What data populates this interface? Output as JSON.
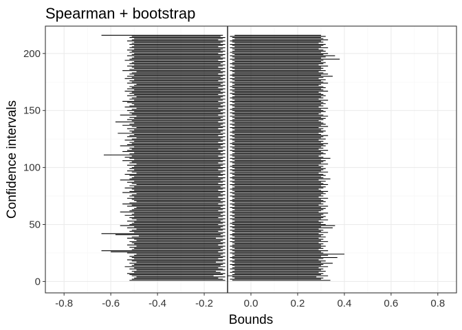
{
  "chart_data": {
    "type": "interval",
    "title": "Spearman + bootstrap",
    "xlabel": "Bounds",
    "ylabel": "Confidence intervals",
    "xlim": [
      -0.88,
      0.88
    ],
    "ylim": [
      -10,
      224
    ],
    "x_ticks": [
      -0.8,
      -0.6,
      -0.4,
      -0.2,
      0.0,
      0.2,
      0.4,
      0.6,
      0.8
    ],
    "x_tick_labels": [
      "-0.8",
      "-0.6",
      "-0.4",
      "-0.2",
      "0.0",
      "0.2",
      "0.4",
      "0.6",
      "0.8"
    ],
    "y_ticks": [
      0,
      50,
      100,
      150,
      200
    ],
    "y_tick_labels": [
      "0",
      "50",
      "100",
      "150",
      "200"
    ],
    "reference_line_x": -0.1,
    "grid": true,
    "interval_count": 216,
    "intervals": {
      "lower": [
        -0.52,
        -0.51,
        -0.5,
        -0.49,
        -0.51,
        -0.52,
        -0.53,
        -0.5,
        -0.51,
        -0.49,
        -0.52,
        -0.5,
        -0.54,
        -0.51,
        -0.5,
        -0.52,
        -0.49,
        -0.51,
        -0.53,
        -0.5,
        -0.51,
        -0.52,
        -0.5,
        -0.49,
        -0.53,
        -0.6,
        -0.64,
        -0.51,
        -0.5,
        -0.52,
        -0.49,
        -0.53,
        -0.5,
        -0.51,
        -0.52,
        -0.49,
        -0.5,
        -0.53,
        -0.51,
        -0.48,
        -0.58,
        -0.64,
        -0.5,
        -0.52,
        -0.51,
        -0.49,
        -0.53,
        -0.5,
        -0.56,
        -0.52,
        -0.51,
        -0.5,
        -0.53,
        -0.49,
        -0.51,
        -0.52,
        -0.5,
        -0.54,
        -0.51,
        -0.5,
        -0.56,
        -0.52,
        -0.51,
        -0.5,
        -0.49,
        -0.53,
        -0.51,
        -0.55,
        -0.52,
        -0.49,
        -0.5,
        -0.51,
        -0.53,
        -0.5,
        -0.52,
        -0.51,
        -0.49,
        -0.55,
        -0.52,
        -0.5,
        -0.51,
        -0.54,
        -0.5,
        -0.52,
        -0.49,
        -0.51,
        -0.53,
        -0.5,
        -0.56,
        -0.52,
        -0.51,
        -0.5,
        -0.52,
        -0.54,
        -0.49,
        -0.51,
        -0.53,
        -0.5,
        -0.52,
        -0.51,
        -0.5,
        -0.53,
        -0.49,
        -0.52,
        -0.51,
        -0.55,
        -0.5,
        -0.52,
        -0.54,
        -0.51,
        -0.63,
        -0.52,
        -0.5,
        -0.55,
        -0.53,
        -0.51,
        -0.52,
        -0.5,
        -0.56,
        -0.53,
        -0.51,
        -0.52,
        -0.5,
        -0.54,
        -0.51,
        -0.49,
        -0.53,
        -0.52,
        -0.5,
        -0.57,
        -0.51,
        -0.52,
        -0.5,
        -0.53,
        -0.49,
        -0.51,
        -0.55,
        -0.52,
        -0.5,
        -0.58,
        -0.51,
        -0.53,
        -0.5,
        -0.52,
        -0.49,
        -0.56,
        -0.51,
        -0.52,
        -0.5,
        -0.53,
        -0.51,
        -0.49,
        -0.54,
        -0.52,
        -0.5,
        -0.51,
        -0.53,
        -0.55,
        -0.5,
        -0.52,
        -0.51,
        -0.49,
        -0.53,
        -0.5,
        -0.52,
        -0.51,
        -0.54,
        -0.5,
        -0.53,
        -0.51,
        -0.52,
        -0.5,
        -0.49,
        -0.53,
        -0.51,
        -0.52,
        -0.5,
        -0.54,
        -0.51,
        -0.53,
        -0.5,
        -0.52,
        -0.51,
        -0.49,
        -0.55,
        -0.52,
        -0.5,
        -0.51,
        -0.53,
        -0.5,
        -0.52,
        -0.51,
        -0.5,
        -0.54,
        -0.52,
        -0.51,
        -0.5,
        -0.53,
        -0.51,
        -0.5,
        -0.52,
        -0.51,
        -0.53,
        -0.5,
        -0.52,
        -0.51,
        -0.5,
        -0.52,
        -0.51,
        -0.5,
        -0.53,
        -0.51,
        -0.5,
        -0.52,
        -0.51,
        -0.64
      ],
      "upper": [
        -0.11,
        -0.12,
        -0.14,
        -0.11,
        -0.16,
        -0.12,
        -0.11,
        -0.13,
        -0.15,
        -0.11,
        -0.12,
        -0.14,
        -0.11,
        -0.13,
        -0.12,
        -0.11,
        -0.15,
        -0.12,
        -0.11,
        -0.14,
        -0.12,
        -0.11,
        -0.13,
        -0.12,
        -0.11,
        -0.14,
        -0.12,
        -0.11,
        -0.13,
        -0.12,
        -0.11,
        -0.14,
        -0.12,
        -0.11,
        -0.13,
        -0.12,
        -0.11,
        -0.15,
        -0.12,
        -0.11,
        -0.13,
        -0.12,
        -0.11,
        -0.14,
        -0.12,
        -0.11,
        -0.13,
        -0.12,
        -0.11,
        -0.14,
        -0.12,
        -0.11,
        -0.13,
        -0.12,
        -0.11,
        -0.14,
        -0.12,
        -0.11,
        -0.13,
        -0.12,
        -0.11,
        -0.14,
        -0.12,
        -0.11,
        -0.13,
        -0.12,
        -0.11,
        -0.14,
        -0.12,
        -0.11,
        -0.13,
        -0.12,
        -0.11,
        -0.14,
        -0.12,
        -0.11,
        -0.13,
        -0.12,
        -0.11,
        -0.14,
        -0.12,
        -0.11,
        -0.13,
        -0.12,
        -0.11,
        -0.14,
        -0.12,
        -0.11,
        -0.13,
        -0.12,
        -0.11,
        -0.14,
        -0.12,
        -0.11,
        -0.13,
        -0.12,
        -0.11,
        -0.14,
        -0.12,
        -0.11,
        -0.13,
        -0.12,
        -0.11,
        -0.14,
        -0.12,
        -0.11,
        -0.13,
        -0.12,
        -0.11,
        -0.14,
        -0.12,
        -0.11,
        -0.13,
        -0.12,
        -0.11,
        -0.14,
        -0.12,
        -0.11,
        -0.13,
        -0.12,
        -0.11,
        -0.14,
        -0.12,
        -0.11,
        -0.13,
        -0.12,
        -0.11,
        -0.14,
        -0.12,
        -0.11,
        -0.13,
        -0.12,
        -0.11,
        -0.14,
        -0.12,
        -0.11,
        -0.13,
        -0.12,
        -0.11,
        -0.14,
        -0.12,
        -0.11,
        -0.13,
        -0.12,
        -0.11,
        -0.14,
        -0.12,
        -0.11,
        -0.13,
        -0.12,
        -0.11,
        -0.14,
        -0.12,
        -0.11,
        -0.13,
        -0.12,
        -0.11,
        -0.14,
        -0.12,
        -0.11,
        -0.13,
        -0.12,
        -0.11,
        -0.14,
        -0.12,
        -0.11,
        -0.13,
        -0.12,
        -0.11,
        -0.14,
        -0.12,
        -0.11,
        -0.13,
        -0.12,
        -0.11,
        -0.14,
        -0.12,
        -0.11,
        -0.13,
        -0.12,
        -0.11,
        -0.14,
        -0.12,
        -0.11,
        -0.13,
        -0.12,
        -0.11,
        -0.14,
        -0.12,
        -0.11,
        -0.13,
        -0.12,
        -0.11,
        -0.14,
        -0.12,
        -0.11,
        -0.13,
        -0.12,
        -0.11,
        -0.14,
        -0.12,
        -0.11,
        -0.13,
        -0.12,
        -0.11,
        -0.14,
        -0.12,
        -0.11,
        -0.13,
        -0.12,
        -0.11,
        -0.14,
        -0.12,
        -0.11,
        -0.13,
        -0.12
      ],
      "right_lower": [
        -0.08,
        -0.09,
        -0.07,
        -0.08,
        -0.1,
        -0.08,
        -0.07,
        -0.09,
        -0.08,
        -0.07,
        -0.09,
        -0.08,
        -0.07,
        -0.08,
        -0.09,
        -0.07,
        -0.08,
        -0.09,
        -0.07,
        -0.08,
        -0.09,
        -0.08,
        -0.07,
        -0.08,
        -0.09,
        -0.07,
        -0.08,
        -0.09,
        -0.07,
        -0.08,
        -0.09,
        -0.08,
        -0.07,
        -0.08,
        -0.09,
        -0.07,
        -0.08,
        -0.09,
        -0.07,
        -0.08,
        -0.09,
        -0.08,
        -0.07,
        -0.08,
        -0.09,
        -0.07,
        -0.08,
        -0.09,
        -0.07,
        -0.08,
        -0.09,
        -0.08,
        -0.07,
        -0.08,
        -0.09,
        -0.07,
        -0.08,
        -0.09,
        -0.07,
        -0.08,
        -0.09,
        -0.08,
        -0.07,
        -0.08,
        -0.09,
        -0.07,
        -0.08,
        -0.09,
        -0.07,
        -0.08,
        -0.09,
        -0.08,
        -0.07,
        -0.08,
        -0.09,
        -0.07,
        -0.08,
        -0.09,
        -0.07,
        -0.08,
        -0.09,
        -0.08,
        -0.07,
        -0.08,
        -0.09,
        -0.07,
        -0.08,
        -0.09,
        -0.07,
        -0.08,
        -0.09,
        -0.08,
        -0.07,
        -0.08,
        -0.09,
        -0.07,
        -0.08,
        -0.09,
        -0.07,
        -0.08,
        -0.09,
        -0.08,
        -0.07,
        -0.08,
        -0.09,
        -0.07,
        -0.08,
        -0.09,
        -0.07,
        -0.08,
        -0.09,
        -0.08,
        -0.07,
        -0.08,
        -0.09,
        -0.07,
        -0.08,
        -0.09,
        -0.07,
        -0.08,
        -0.09,
        -0.08,
        -0.07,
        -0.08,
        -0.09,
        -0.07,
        -0.08,
        -0.09,
        -0.07,
        -0.08,
        -0.09,
        -0.08,
        -0.07,
        -0.08,
        -0.09,
        -0.07,
        -0.08,
        -0.09,
        -0.07,
        -0.08,
        -0.09,
        -0.08,
        -0.07,
        -0.08,
        -0.09,
        -0.07,
        -0.08,
        -0.09,
        -0.07,
        -0.08,
        -0.09,
        -0.08,
        -0.07,
        -0.08,
        -0.09,
        -0.07,
        -0.08,
        -0.09,
        -0.07,
        -0.08,
        -0.09,
        -0.08,
        -0.07,
        -0.08,
        -0.09,
        -0.07,
        -0.08,
        -0.09,
        -0.07,
        -0.08,
        -0.09,
        -0.08,
        -0.07,
        -0.08,
        -0.09,
        -0.07,
        -0.08,
        -0.09,
        -0.07,
        -0.08,
        -0.09,
        -0.08,
        -0.07,
        -0.08,
        -0.09,
        -0.07,
        -0.08,
        -0.09,
        -0.07,
        -0.08,
        -0.09,
        -0.08,
        -0.07,
        -0.08,
        -0.09,
        -0.07,
        -0.08,
        -0.09,
        -0.07,
        -0.08,
        -0.09,
        -0.08,
        -0.07,
        -0.08,
        -0.09,
        -0.07,
        -0.08,
        -0.09,
        -0.07,
        -0.08,
        -0.09,
        -0.08,
        -0.07,
        -0.08,
        -0.09,
        -0.07
      ],
      "right_upper": [
        0.34,
        0.3,
        0.31,
        0.28,
        0.33,
        0.3,
        0.31,
        0.29,
        0.32,
        0.3,
        0.31,
        0.29,
        0.33,
        0.3,
        0.31,
        0.35,
        0.3,
        0.32,
        0.29,
        0.31,
        0.37,
        0.3,
        0.33,
        0.4,
        0.31,
        0.3,
        0.33,
        0.29,
        0.31,
        0.3,
        0.32,
        0.3,
        0.31,
        0.29,
        0.33,
        0.3,
        0.31,
        0.29,
        0.32,
        0.3,
        0.31,
        0.29,
        0.33,
        0.3,
        0.31,
        0.29,
        0.35,
        0.3,
        0.36,
        0.32,
        0.3,
        0.31,
        0.29,
        0.33,
        0.3,
        0.31,
        0.32,
        0.3,
        0.31,
        0.33,
        0.29,
        0.3,
        0.31,
        0.32,
        0.3,
        0.33,
        0.29,
        0.31,
        0.3,
        0.32,
        0.31,
        0.3,
        0.33,
        0.29,
        0.31,
        0.3,
        0.32,
        0.31,
        0.33,
        0.3,
        0.29,
        0.31,
        0.32,
        0.3,
        0.33,
        0.31,
        0.3,
        0.32,
        0.29,
        0.34,
        0.31,
        0.3,
        0.32,
        0.31,
        0.29,
        0.33,
        0.3,
        0.31,
        0.32,
        0.3,
        0.31,
        0.29,
        0.33,
        0.3,
        0.31,
        0.32,
        0.3,
        0.34,
        0.31,
        0.29,
        0.3,
        0.32,
        0.31,
        0.3,
        0.33,
        0.29,
        0.31,
        0.3,
        0.32,
        0.31,
        0.33,
        0.3,
        0.31,
        0.29,
        0.32,
        0.3,
        0.31,
        0.33,
        0.3,
        0.29,
        0.31,
        0.32,
        0.3,
        0.31,
        0.29,
        0.33,
        0.3,
        0.32,
        0.31,
        0.3,
        0.29,
        0.31,
        0.32,
        0.3,
        0.33,
        0.31,
        0.29,
        0.3,
        0.32,
        0.31,
        0.3,
        0.33,
        0.29,
        0.31,
        0.3,
        0.32,
        0.31,
        0.3,
        0.33,
        0.29,
        0.31,
        0.3,
        0.32,
        0.31,
        0.3,
        0.29,
        0.33,
        0.31,
        0.3,
        0.32,
        0.31,
        0.29,
        0.3,
        0.33,
        0.31,
        0.3,
        0.32,
        0.29,
        0.31,
        0.35,
        0.3,
        0.33,
        0.31,
        0.29,
        0.32,
        0.3,
        0.31,
        0.3,
        0.33,
        0.29,
        0.31,
        0.32,
        0.3,
        0.31,
        0.38,
        0.3,
        0.32,
        0.36,
        0.31,
        0.33,
        0.3,
        0.32,
        0.31,
        0.29,
        0.33,
        0.3,
        0.31,
        0.32,
        0.29,
        0.31,
        0.3,
        0.33,
        0.31,
        0.3,
        0.32,
        0.3
      ]
    }
  }
}
